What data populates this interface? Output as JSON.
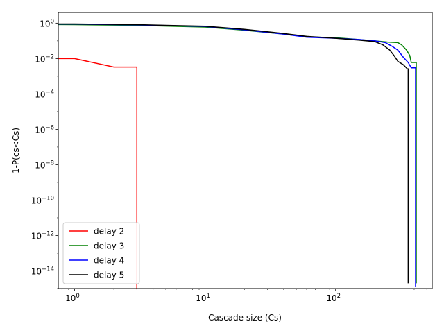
{
  "chart_data": {
    "type": "line",
    "title": "",
    "xlabel": "Cascade size (Cs)",
    "ylabel": "1-P(cs<Cs)",
    "xscale": "log",
    "yscale": "log",
    "xlim": [
      0.75,
      550
    ],
    "ylim": [
      1e-15,
      4
    ],
    "grid": false,
    "legend": "lower-left",
    "x_ticks": [
      {
        "value": 1,
        "base": "10",
        "exp": "0"
      },
      {
        "value": 10,
        "base": "10",
        "exp": "1"
      },
      {
        "value": 100,
        "base": "10",
        "exp": "2"
      }
    ],
    "y_ticks": [
      {
        "value": 1,
        "base": "10",
        "exp": "0"
      },
      {
        "value": 0.01,
        "base": "10",
        "exp": "−2"
      },
      {
        "value": 0.0001,
        "base": "10",
        "exp": "−4"
      },
      {
        "value": 1e-06,
        "base": "10",
        "exp": "−6"
      },
      {
        "value": 1e-08,
        "base": "10",
        "exp": "−8"
      },
      {
        "value": 1e-10,
        "base": "10",
        "exp": "−10"
      },
      {
        "value": 1e-12,
        "base": "10",
        "exp": "−12"
      },
      {
        "value": 1e-14,
        "base": "10",
        "exp": "−14"
      }
    ],
    "series": [
      {
        "name": "delay 2",
        "color": "#ff0000",
        "points": [
          [
            0.75,
            0.01
          ],
          [
            1,
            0.01
          ],
          [
            2,
            0.0033
          ],
          [
            3,
            0.0033
          ],
          [
            3,
            1e-15
          ]
        ]
      },
      {
        "name": "delay 3",
        "color": "#008000",
        "points": [
          [
            0.75,
            0.83
          ],
          [
            1,
            0.82
          ],
          [
            3,
            0.75
          ],
          [
            10,
            0.6
          ],
          [
            20,
            0.4
          ],
          [
            40,
            0.24
          ],
          [
            60,
            0.17
          ],
          [
            100,
            0.15
          ],
          [
            150,
            0.12
          ],
          [
            200,
            0.1
          ],
          [
            250,
            0.085
          ],
          [
            300,
            0.08
          ],
          [
            320,
            0.06
          ],
          [
            350,
            0.03
          ],
          [
            370,
            0.015
          ],
          [
            380,
            0.006
          ],
          [
            415,
            0.006
          ],
          [
            415,
            2e-15
          ]
        ]
      },
      {
        "name": "delay 4",
        "color": "#0000ff",
        "points": [
          [
            0.75,
            0.88
          ],
          [
            1,
            0.88
          ],
          [
            3,
            0.8
          ],
          [
            10,
            0.65
          ],
          [
            20,
            0.42
          ],
          [
            40,
            0.24
          ],
          [
            60,
            0.16
          ],
          [
            100,
            0.14
          ],
          [
            150,
            0.12
          ],
          [
            200,
            0.1
          ],
          [
            240,
            0.08
          ],
          [
            270,
            0.05
          ],
          [
            300,
            0.03
          ],
          [
            330,
            0.012
          ],
          [
            360,
            0.006
          ],
          [
            380,
            0.003
          ],
          [
            410,
            0.003
          ],
          [
            410,
            1.3e-15
          ]
        ]
      },
      {
        "name": "delay 5",
        "color": "#000000",
        "points": [
          [
            0.75,
            0.9
          ],
          [
            1,
            0.9
          ],
          [
            3,
            0.82
          ],
          [
            10,
            0.67
          ],
          [
            20,
            0.45
          ],
          [
            40,
            0.26
          ],
          [
            60,
            0.18
          ],
          [
            100,
            0.14
          ],
          [
            150,
            0.11
          ],
          [
            200,
            0.09
          ],
          [
            230,
            0.06
          ],
          [
            260,
            0.03
          ],
          [
            280,
            0.015
          ],
          [
            300,
            0.007
          ],
          [
            330,
            0.0045
          ],
          [
            355,
            0.0026
          ],
          [
            360,
            0.0026
          ],
          [
            360,
            2e-15
          ]
        ]
      }
    ]
  }
}
